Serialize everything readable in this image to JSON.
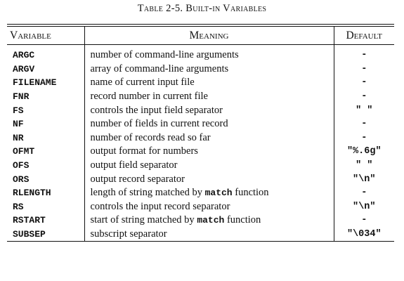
{
  "caption": "Table 2-5. Built-in Variables",
  "headers": {
    "variable": "Variable",
    "meaning": "Meaning",
    "default": "Default"
  },
  "rows": [
    {
      "variable": "ARGC",
      "meaning": "number of command-line arguments",
      "default": "-"
    },
    {
      "variable": "ARGV",
      "meaning": "array of command-line arguments",
      "default": "-"
    },
    {
      "variable": "FILENAME",
      "meaning": "name of current input file",
      "default": "-"
    },
    {
      "variable": "FNR",
      "meaning": "record number in current file",
      "default": "-"
    },
    {
      "variable": "FS",
      "meaning": "controls the input field separator",
      "default": "\" \""
    },
    {
      "variable": "NF",
      "meaning": "number of fields in current record",
      "default": "-"
    },
    {
      "variable": "NR",
      "meaning": "number of records read so far",
      "default": "-"
    },
    {
      "variable": "OFMT",
      "meaning": "output format for numbers",
      "default": "\"%.6g\""
    },
    {
      "variable": "OFS",
      "meaning": "output field separator",
      "default": "\" \""
    },
    {
      "variable": "ORS",
      "meaning": "output record separator",
      "default": "\"\\n\""
    },
    {
      "variable": "RLENGTH",
      "meaning_pre": "length of string matched by ",
      "meaning_code": "match",
      "meaning_post": " function",
      "default": "-"
    },
    {
      "variable": "RS",
      "meaning": "controls the input record separator",
      "default": "\"\\n\""
    },
    {
      "variable": "RSTART",
      "meaning_pre": "start of string matched by ",
      "meaning_code": "match",
      "meaning_post": " function",
      "default": "-"
    },
    {
      "variable": "SUBSEP",
      "meaning": "subscript separator",
      "default": "\"\\034\""
    }
  ]
}
